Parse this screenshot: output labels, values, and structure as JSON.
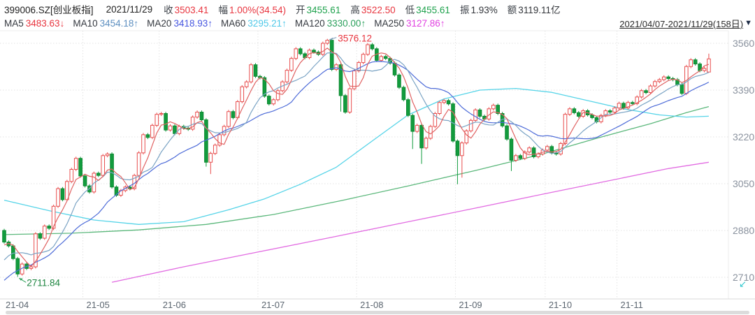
{
  "header": {
    "symbol": "399006.SZ[创业板指]",
    "date": "2021/11/29",
    "quote_fields": [
      {
        "key": "close",
        "label": "收",
        "value": "3503.41",
        "color": "red"
      },
      {
        "key": "change",
        "label": "幅",
        "value": "1.00%(34.54)",
        "color": "red"
      },
      {
        "key": "open",
        "label": "开",
        "value": "3455.61",
        "color": "green"
      },
      {
        "key": "high",
        "label": "高",
        "value": "3522.50",
        "color": "red"
      },
      {
        "key": "low",
        "label": "低",
        "value": "3455.61",
        "color": "green"
      },
      {
        "key": "amplitude",
        "label": "振",
        "value": "1.93%",
        "color": "plain"
      },
      {
        "key": "turnover",
        "label": "额",
        "value": "3119.11亿",
        "color": "plain"
      }
    ],
    "value_colors": {
      "red": "#e8353f",
      "green": "#1fa24d",
      "plain": "#33363b"
    }
  },
  "ma_legend": [
    {
      "key": "ma5",
      "label": "MA5",
      "value": "3483.63",
      "arrow": "↓",
      "color": "#e8353f"
    },
    {
      "key": "ma10",
      "label": "MA10",
      "value": "3454.18",
      "arrow": "↑",
      "color": "#5d8fc0"
    },
    {
      "key": "ma20",
      "label": "MA20",
      "value": "3418.93",
      "arrow": "↑",
      "color": "#4757e0"
    },
    {
      "key": "ma60",
      "label": "MA60",
      "value": "3295.21",
      "arrow": "↑",
      "color": "#4fc8e8"
    },
    {
      "key": "ma120",
      "label": "MA120",
      "value": "3330.00",
      "arrow": "↑",
      "color": "#2ba05c"
    },
    {
      "key": "ma250",
      "label": "MA250",
      "value": "3127.86",
      "arrow": "↑",
      "color": "#e040e0"
    }
  ],
  "range_control": {
    "text": "2021/04/07-2021/11/29(158日)",
    "dropdown_icon": "▼"
  },
  "restore_icon": {
    "glyph": "↙",
    "color": "#2fc7cf"
  },
  "chart_data": {
    "type": "candlestick",
    "title": "399006.SZ 创业板指 daily K-line 2021/04/07-2021/11/29",
    "y_axis": {
      "ticks": [
        3560,
        3390,
        3220,
        3050,
        2880,
        2710
      ],
      "label_color": "#8a929e"
    },
    "x_axis": {
      "label_color": "#5c6670",
      "month_labels": [
        {
          "label": "21-04",
          "day": 0
        },
        {
          "label": "21-05",
          "day": 18
        },
        {
          "label": "21-06",
          "day": 35
        },
        {
          "label": "21-07",
          "day": 57
        },
        {
          "label": "21-08",
          "day": 79
        },
        {
          "label": "21-09",
          "day": 101
        },
        {
          "label": "21-10",
          "day": 121
        },
        {
          "label": "21-11",
          "day": 137
        }
      ]
    },
    "annotations": {
      "high": {
        "day": 72,
        "price": 3576.12,
        "text": "3576.12",
        "text_color": "#e8353f",
        "arrow_color": "#7d9cba"
      },
      "low": {
        "day": 3,
        "price": 2711.84,
        "text": "2711.84",
        "text_color": "#1e8540",
        "arrow_color": "#2fa25a"
      }
    },
    "candles": {
      "default_wick": 6,
      "pre_closes": [
        2560,
        2542,
        2528,
        2548,
        2585,
        2612,
        2645,
        2672,
        2700,
        2725,
        2695,
        2668,
        2688,
        2715,
        2748,
        2772,
        2795,
        2812,
        2835,
        2858
      ],
      "closes": [
        2838,
        2824,
        2778,
        2722,
        2758,
        2742,
        2748,
        2868,
        2852,
        2896,
        2888,
        2968,
        3032,
        2992,
        3058,
        3102,
        3142,
        3078,
        3042,
        3020,
        3088,
        3080,
        3152,
        3158,
        3038,
        3008,
        3025,
        3038,
        3032,
        3080,
        3162,
        3228,
        3218,
        3262,
        3302,
        3305,
        3245,
        3260,
        3232,
        3258,
        3252,
        3248,
        3292,
        3310,
        3282,
        3128,
        3160,
        3190,
        3228,
        3258,
        3312,
        3290,
        3348,
        3402,
        3420,
        3482,
        3440,
        3435,
        3368,
        3340,
        3355,
        3388,
        3420,
        3462,
        3505,
        3540,
        3522,
        3508,
        3535,
        3528,
        3520,
        3560,
        3571,
        3465,
        3482,
        3370,
        3310,
        3395,
        3460,
        3490,
        3520,
        3555,
        3540,
        3498,
        3512,
        3505,
        3488,
        3445,
        3400,
        3355,
        3298,
        3240,
        3262,
        3180,
        3215,
        3258,
        3305,
        3345,
        3352,
        3340,
        3205,
        3152,
        3198,
        3242,
        3280,
        3318,
        3295,
        3285,
        3322,
        3335,
        3305,
        3260,
        3212,
        3135,
        3152,
        3142,
        3165,
        3180,
        3148,
        3158,
        3172,
        3185,
        3162,
        3158,
        3196,
        3302,
        3322,
        3308,
        3295,
        3315,
        3300,
        3290,
        3275,
        3298,
        3315,
        3310,
        3325,
        3342,
        3325,
        3345,
        3341,
        3365,
        3388,
        3381,
        3405,
        3421,
        3428,
        3437.8,
        3432,
        3428,
        3410,
        3378,
        3475.65,
        3500,
        3485,
        3460.87,
        3468.87,
        3503.41
      ],
      "open_overrides": {
        "0": 2880,
        "157": 3455.61
      },
      "high_overrides": {
        "72": 3576.12,
        "157": 3522.5
      },
      "low_overrides": {
        "3": 2711.84,
        "45": 3112,
        "46": 3085,
        "75": 3312,
        "91": 3176,
        "93": 3122,
        "101": 3048,
        "102": 3072,
        "113": 3096,
        "157": 3455.61
      }
    },
    "ma_computed": [
      {
        "name": "MA20",
        "period": 20,
        "color": "#4d6bd8"
      },
      {
        "name": "MA10",
        "period": 10,
        "color": "#7aa3c4"
      },
      {
        "name": "MA5",
        "period": 5,
        "color": "#e06262"
      }
    ],
    "ma_anchor_series": [
      {
        "name": "MA250",
        "color": "#e26ce2",
        "points": [
          [
            24,
            2692
          ],
          [
            40,
            2748
          ],
          [
            56,
            2800
          ],
          [
            72,
            2852
          ],
          [
            88,
            2905
          ],
          [
            104,
            2958
          ],
          [
            120,
            3012
          ],
          [
            136,
            3065
          ],
          [
            148,
            3105
          ],
          [
            157,
            3127.86
          ]
        ]
      },
      {
        "name": "MA120",
        "color": "#5cb87c",
        "points": [
          [
            0,
            2865
          ],
          [
            15,
            2870
          ],
          [
            30,
            2882
          ],
          [
            45,
            2902
          ],
          [
            60,
            2938
          ],
          [
            75,
            2988
          ],
          [
            90,
            3042
          ],
          [
            105,
            3098
          ],
          [
            120,
            3158
          ],
          [
            132,
            3215
          ],
          [
            144,
            3268
          ],
          [
            152,
            3308
          ],
          [
            157,
            3330
          ]
        ]
      },
      {
        "name": "MA60",
        "color": "#56d4e8",
        "points": [
          [
            0,
            2990
          ],
          [
            10,
            2952
          ],
          [
            20,
            2918
          ],
          [
            30,
            2902
          ],
          [
            40,
            2912
          ],
          [
            50,
            2955
          ],
          [
            58,
            2995
          ],
          [
            66,
            3048
          ],
          [
            74,
            3110
          ],
          [
            82,
            3205
          ],
          [
            90,
            3300
          ],
          [
            98,
            3358
          ],
          [
            106,
            3390
          ],
          [
            114,
            3396
          ],
          [
            122,
            3382
          ],
          [
            130,
            3352
          ],
          [
            138,
            3322
          ],
          [
            146,
            3300
          ],
          [
            152,
            3292
          ],
          [
            157,
            3295.21
          ]
        ]
      }
    ],
    "colors": {
      "up": "#e84d4d",
      "up_fill": "#ffffff",
      "down": "#129c3e",
      "down_border": "#0d8a31",
      "grid": "#e3e3e3",
      "axis_line": "#d9d9d9",
      "plot_border": "#ececec",
      "scroll_track": "#efefef",
      "scroll_thumb": "#dcdcdc"
    }
  }
}
